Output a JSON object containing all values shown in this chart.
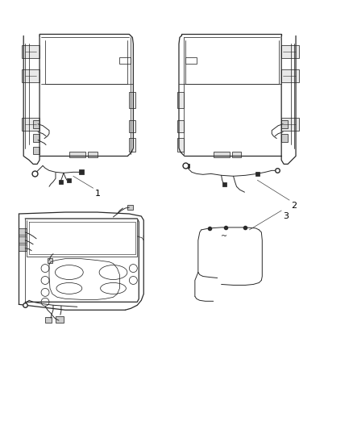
{
  "background_color": "#ffffff",
  "line_color": "#2a2a2a",
  "fig_width": 4.38,
  "fig_height": 5.33,
  "dpi": 100,
  "label_fontsize": 8,
  "lw_main": 0.9,
  "lw_thin": 0.55,
  "lw_wire": 0.7
}
